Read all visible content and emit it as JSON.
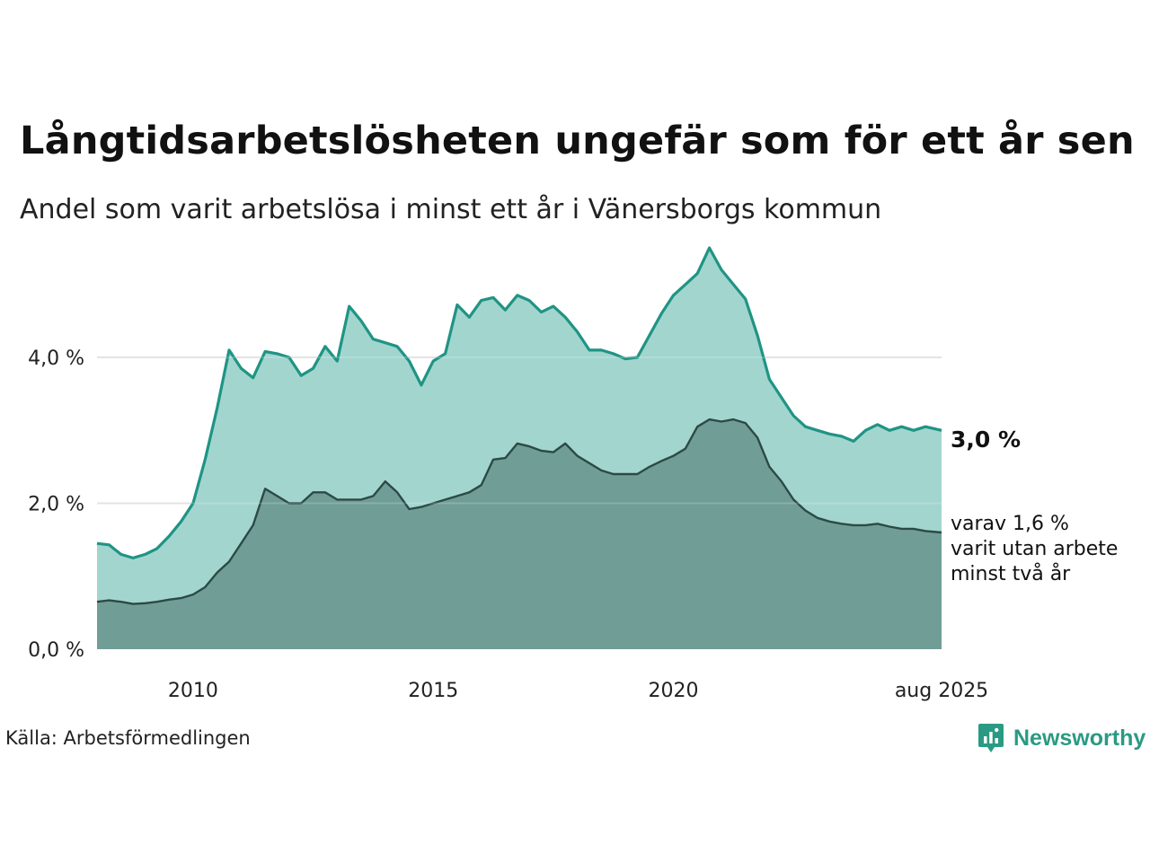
{
  "title": "Långtidsarbetslösheten ungefär som för ett år sen",
  "subtitle": "Andel som varit arbetslösa i minst ett år i Vänersborgs kommun",
  "source": "Källa: Arbetsförmedlingen",
  "brand": "Newsworthy",
  "colors": {
    "area_1yr": "#a3d5cf",
    "line_1yr": "#1f9484",
    "area_2yr": "#709e96",
    "line_2yr": "#2c4a45",
    "grid": "#dddddd"
  },
  "end_labels": {
    "main": "3,0 %",
    "sub_lines": [
      "varav 1,6 %",
      "varit utan arbete",
      "minst två år"
    ]
  },
  "chart_data": {
    "type": "area",
    "x_range": [
      "2008-01",
      "2025-08"
    ],
    "ylim": [
      0,
      5.6
    ],
    "y_ticks": [
      {
        "value": 0,
        "label": "0,0 %"
      },
      {
        "value": 2,
        "label": "2,0 %"
      },
      {
        "value": 4,
        "label": "4,0 %"
      }
    ],
    "x_ticks": [
      {
        "date": "2010-01",
        "label": "2010"
      },
      {
        "date": "2015-01",
        "label": "2015"
      },
      {
        "date": "2020-01",
        "label": "2020"
      },
      {
        "date": "2025-08",
        "label": "aug 2025"
      }
    ],
    "grid": "horizontal",
    "series": [
      {
        "name": "Arbetslösa minst ett år",
        "points": [
          [
            "2008-01",
            1.45
          ],
          [
            "2008-04",
            1.43
          ],
          [
            "2008-07",
            1.3
          ],
          [
            "2008-10",
            1.25
          ],
          [
            "2009-01",
            1.3
          ],
          [
            "2009-04",
            1.38
          ],
          [
            "2009-07",
            1.55
          ],
          [
            "2009-10",
            1.75
          ],
          [
            "2010-01",
            2.0
          ],
          [
            "2010-04",
            2.6
          ],
          [
            "2010-07",
            3.3
          ],
          [
            "2010-10",
            4.1
          ],
          [
            "2011-01",
            3.85
          ],
          [
            "2011-04",
            3.72
          ],
          [
            "2011-07",
            4.08
          ],
          [
            "2011-10",
            4.05
          ],
          [
            "2012-01",
            4.0
          ],
          [
            "2012-04",
            3.75
          ],
          [
            "2012-07",
            3.85
          ],
          [
            "2012-10",
            4.15
          ],
          [
            "2013-01",
            3.95
          ],
          [
            "2013-04",
            4.7
          ],
          [
            "2013-07",
            4.5
          ],
          [
            "2013-10",
            4.25
          ],
          [
            "2014-01",
            4.2
          ],
          [
            "2014-04",
            4.15
          ],
          [
            "2014-07",
            3.95
          ],
          [
            "2014-10",
            3.62
          ],
          [
            "2015-01",
            3.95
          ],
          [
            "2015-04",
            4.05
          ],
          [
            "2015-07",
            4.72
          ],
          [
            "2015-10",
            4.55
          ],
          [
            "2016-01",
            4.78
          ],
          [
            "2016-04",
            4.82
          ],
          [
            "2016-07",
            4.65
          ],
          [
            "2016-10",
            4.85
          ],
          [
            "2017-01",
            4.78
          ],
          [
            "2017-04",
            4.62
          ],
          [
            "2017-07",
            4.7
          ],
          [
            "2017-10",
            4.55
          ],
          [
            "2018-01",
            4.35
          ],
          [
            "2018-04",
            4.1
          ],
          [
            "2018-07",
            4.1
          ],
          [
            "2018-10",
            4.05
          ],
          [
            "2019-01",
            3.98
          ],
          [
            "2019-04",
            4.0
          ],
          [
            "2019-07",
            4.3
          ],
          [
            "2019-10",
            4.6
          ],
          [
            "2020-01",
            4.85
          ],
          [
            "2020-04",
            5.0
          ],
          [
            "2020-07",
            5.15
          ],
          [
            "2020-10",
            5.5
          ],
          [
            "2021-01",
            5.2
          ],
          [
            "2021-04",
            5.0
          ],
          [
            "2021-07",
            4.8
          ],
          [
            "2021-10",
            4.3
          ],
          [
            "2022-01",
            3.7
          ],
          [
            "2022-04",
            3.45
          ],
          [
            "2022-07",
            3.2
          ],
          [
            "2022-10",
            3.05
          ],
          [
            "2023-01",
            3.0
          ],
          [
            "2023-04",
            2.95
          ],
          [
            "2023-07",
            2.92
          ],
          [
            "2023-10",
            2.85
          ],
          [
            "2024-01",
            3.0
          ],
          [
            "2024-04",
            3.08
          ],
          [
            "2024-07",
            3.0
          ],
          [
            "2024-10",
            3.05
          ],
          [
            "2025-01",
            3.0
          ],
          [
            "2025-04",
            3.05
          ],
          [
            "2025-08",
            3.0
          ]
        ]
      },
      {
        "name": "varit utan arbete minst två år",
        "points": [
          [
            "2008-01",
            0.65
          ],
          [
            "2008-04",
            0.67
          ],
          [
            "2008-07",
            0.65
          ],
          [
            "2008-10",
            0.62
          ],
          [
            "2009-01",
            0.63
          ],
          [
            "2009-04",
            0.65
          ],
          [
            "2009-07",
            0.68
          ],
          [
            "2009-10",
            0.7
          ],
          [
            "2010-01",
            0.75
          ],
          [
            "2010-04",
            0.85
          ],
          [
            "2010-07",
            1.05
          ],
          [
            "2010-10",
            1.2
          ],
          [
            "2011-01",
            1.45
          ],
          [
            "2011-04",
            1.7
          ],
          [
            "2011-07",
            2.2
          ],
          [
            "2011-10",
            2.1
          ],
          [
            "2012-01",
            2.0
          ],
          [
            "2012-04",
            2.0
          ],
          [
            "2012-07",
            2.15
          ],
          [
            "2012-10",
            2.15
          ],
          [
            "2013-01",
            2.05
          ],
          [
            "2013-04",
            2.05
          ],
          [
            "2013-07",
            2.05
          ],
          [
            "2013-10",
            2.1
          ],
          [
            "2014-01",
            2.3
          ],
          [
            "2014-04",
            2.15
          ],
          [
            "2014-07",
            1.92
          ],
          [
            "2014-10",
            1.95
          ],
          [
            "2015-01",
            2.0
          ],
          [
            "2015-04",
            2.05
          ],
          [
            "2015-07",
            2.1
          ],
          [
            "2015-10",
            2.15
          ],
          [
            "2016-01",
            2.25
          ],
          [
            "2016-04",
            2.6
          ],
          [
            "2016-07",
            2.62
          ],
          [
            "2016-10",
            2.82
          ],
          [
            "2017-01",
            2.78
          ],
          [
            "2017-04",
            2.72
          ],
          [
            "2017-07",
            2.7
          ],
          [
            "2017-10",
            2.82
          ],
          [
            "2018-01",
            2.65
          ],
          [
            "2018-04",
            2.55
          ],
          [
            "2018-07",
            2.45
          ],
          [
            "2018-10",
            2.4
          ],
          [
            "2019-01",
            2.4
          ],
          [
            "2019-04",
            2.4
          ],
          [
            "2019-07",
            2.5
          ],
          [
            "2019-10",
            2.58
          ],
          [
            "2020-01",
            2.65
          ],
          [
            "2020-04",
            2.75
          ],
          [
            "2020-07",
            3.05
          ],
          [
            "2020-10",
            3.15
          ],
          [
            "2021-01",
            3.12
          ],
          [
            "2021-04",
            3.15
          ],
          [
            "2021-07",
            3.1
          ],
          [
            "2021-10",
            2.9
          ],
          [
            "2022-01",
            2.5
          ],
          [
            "2022-04",
            2.3
          ],
          [
            "2022-07",
            2.05
          ],
          [
            "2022-10",
            1.9
          ],
          [
            "2023-01",
            1.8
          ],
          [
            "2023-04",
            1.75
          ],
          [
            "2023-07",
            1.72
          ],
          [
            "2023-10",
            1.7
          ],
          [
            "2024-01",
            1.7
          ],
          [
            "2024-04",
            1.72
          ],
          [
            "2024-07",
            1.68
          ],
          [
            "2024-10",
            1.65
          ],
          [
            "2025-01",
            1.65
          ],
          [
            "2025-04",
            1.62
          ],
          [
            "2025-08",
            1.6
          ]
        ]
      }
    ]
  }
}
